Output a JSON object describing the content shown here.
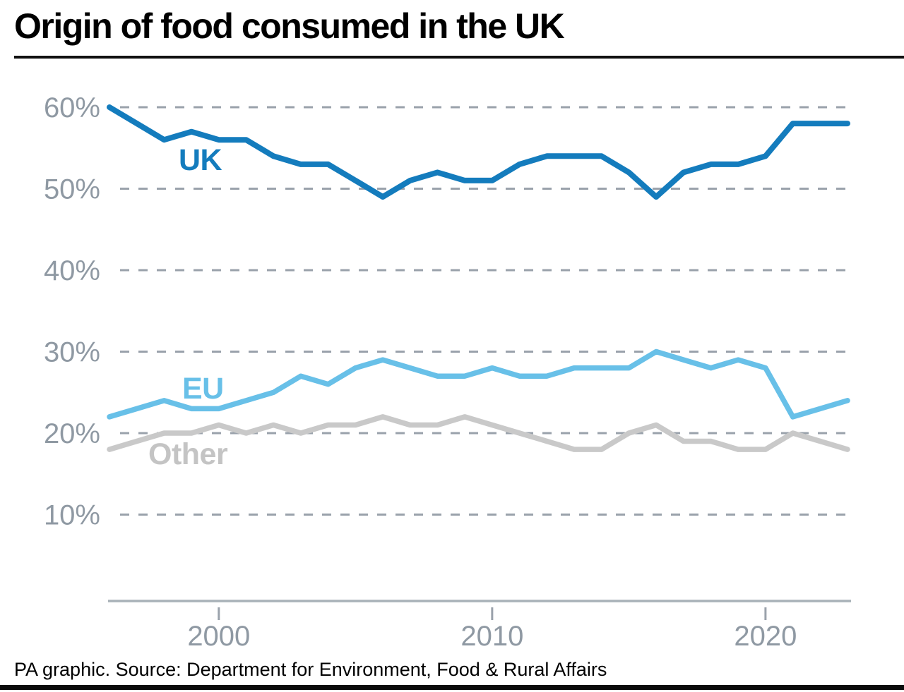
{
  "header": {
    "title": "Origin of food consumed in the UK"
  },
  "footer": {
    "source": "PA graphic. Source: Department for Environment, Food & Rural Affairs"
  },
  "colors": {
    "uk_line": "#147cbd",
    "eu_line": "#68c0e8",
    "other_line": "#c9c9c9",
    "grid": "#9aa2ab",
    "axis": "#a9b2b8",
    "tick_text": "#8f99a3",
    "title_text": "#000000"
  },
  "chart_data": {
    "type": "line",
    "title": "Origin of food consumed in the UK",
    "unit": "%",
    "x": [
      1996,
      1997,
      1998,
      1999,
      2000,
      2001,
      2002,
      2003,
      2004,
      2005,
      2006,
      2007,
      2008,
      2009,
      2010,
      2011,
      2012,
      2013,
      2014,
      2015,
      2016,
      2017,
      2018,
      2019,
      2020,
      2021,
      2022,
      2023
    ],
    "series": [
      {
        "name": "UK",
        "color": "#147cbd",
        "values": [
          60,
          58,
          56,
          57,
          56,
          56,
          54,
          53,
          53,
          51,
          49,
          51,
          52,
          51,
          51,
          53,
          54,
          54,
          54,
          52,
          49,
          52,
          53,
          53,
          54,
          58,
          58,
          58
        ]
      },
      {
        "name": "EU",
        "color": "#68c0e8",
        "values": [
          22,
          23,
          24,
          23,
          23,
          24,
          25,
          27,
          26,
          28,
          29,
          28,
          27,
          27,
          28,
          27,
          27,
          28,
          28,
          28,
          30,
          29,
          28,
          29,
          28,
          22,
          23,
          24
        ]
      },
      {
        "name": "Other",
        "color": "#c9c9c9",
        "values": [
          18,
          19,
          20,
          20,
          21,
          20,
          21,
          20,
          21,
          21,
          22,
          21,
          21,
          22,
          21,
          20,
          19,
          18,
          18,
          20,
          21,
          19,
          19,
          18,
          18,
          20,
          19,
          18
        ]
      }
    ],
    "y_ticks": [
      {
        "value": 60,
        "label": "60%"
      },
      {
        "value": 50,
        "label": "50%"
      },
      {
        "value": 40,
        "label": "40%"
      },
      {
        "value": 30,
        "label": "30%"
      },
      {
        "value": 20,
        "label": "20%"
      },
      {
        "value": 10,
        "label": "10%"
      }
    ],
    "x_ticks": [
      {
        "value": 2000,
        "label": "2000"
      },
      {
        "value": 2010,
        "label": "2010"
      },
      {
        "value": 2020,
        "label": "2020"
      }
    ],
    "xlim": [
      1996,
      2023
    ],
    "ylim": [
      0,
      62
    ],
    "grid": "horizontal-dashed",
    "legend": "inline-labels",
    "xlabel": "",
    "ylabel": ""
  }
}
